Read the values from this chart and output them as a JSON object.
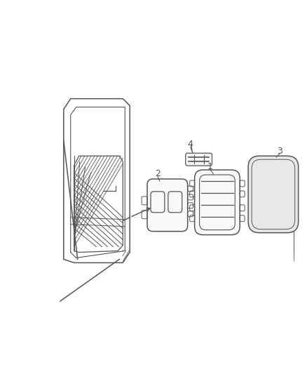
{
  "background_color": "#ffffff",
  "line_color": "#555555",
  "line_width": 1.0,
  "label_fontsize": 9,
  "figsize": [
    4.38,
    5.33
  ],
  "dpi": 100
}
